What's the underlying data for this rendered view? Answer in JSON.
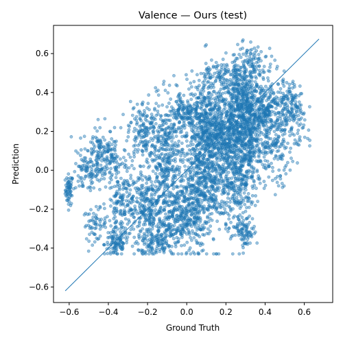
{
  "chart_data": {
    "type": "scatter",
    "title": "Valence — Ours (test)",
    "xlabel": "Ground Truth",
    "ylabel": "Prediction",
    "xlim": [
      -0.68,
      0.745
    ],
    "ylim": [
      -0.68,
      0.745
    ],
    "xticks": [
      -0.6,
      -0.4,
      -0.2,
      0.0,
      0.2,
      0.4,
      0.6
    ],
    "yticks": [
      -0.6,
      -0.4,
      -0.2,
      0.0,
      0.2,
      0.4,
      0.6
    ],
    "xtick_labels": [
      "−0.6",
      "−0.4",
      "−0.2",
      "0.0",
      "0.2",
      "0.4",
      "0.6"
    ],
    "ytick_labels": [
      "−0.6",
      "−0.4",
      "−0.2",
      "0.0",
      "0.2",
      "0.4",
      "0.6"
    ],
    "grid": false,
    "legend": "none",
    "marker_color": "#1f77b4",
    "identity_line": {
      "from": [
        -0.62,
        -0.62
      ],
      "to": [
        0.675,
        0.675
      ],
      "color": "#1f77b4"
    },
    "point_clusters": [
      {
        "cx": -0.6,
        "cy": -0.1,
        "sx": 0.01,
        "sy": 0.04,
        "n": 60
      },
      {
        "cx": -0.52,
        "cy": -0.02,
        "sx": 0.03,
        "sy": 0.05,
        "n": 60
      },
      {
        "cx": -0.45,
        "cy": 0.08,
        "sx": 0.04,
        "sy": 0.08,
        "n": 140
      },
      {
        "cx": -0.47,
        "cy": -0.28,
        "sx": 0.03,
        "sy": 0.04,
        "n": 60
      },
      {
        "cx": -0.36,
        "cy": -0.38,
        "sx": 0.03,
        "sy": 0.04,
        "n": 90
      },
      {
        "cx": -0.33,
        "cy": -0.18,
        "sx": 0.04,
        "sy": 0.08,
        "n": 160
      },
      {
        "cx": -0.38,
        "cy": 0.05,
        "sx": 0.04,
        "sy": 0.06,
        "n": 80
      },
      {
        "cx": -0.22,
        "cy": 0.2,
        "sx": 0.04,
        "sy": 0.08,
        "n": 180
      },
      {
        "cx": -0.2,
        "cy": -0.2,
        "sx": 0.05,
        "sy": 0.1,
        "n": 280
      },
      {
        "cx": -0.1,
        "cy": 0.05,
        "sx": 0.04,
        "sy": 0.15,
        "n": 350
      },
      {
        "cx": -0.05,
        "cy": -0.25,
        "sx": 0.05,
        "sy": 0.08,
        "n": 250
      },
      {
        "cx": -0.02,
        "cy": 0.3,
        "sx": 0.04,
        "sy": 0.05,
        "n": 120
      },
      {
        "cx": 0.05,
        "cy": -0.1,
        "sx": 0.05,
        "sy": 0.15,
        "n": 380
      },
      {
        "cx": 0.08,
        "cy": 0.28,
        "sx": 0.04,
        "sy": 0.1,
        "n": 250
      },
      {
        "cx": 0.12,
        "cy": 0.05,
        "sx": 0.05,
        "sy": 0.18,
        "n": 450
      },
      {
        "cx": 0.2,
        "cy": 0.2,
        "sx": 0.05,
        "sy": 0.12,
        "n": 420
      },
      {
        "cx": 0.28,
        "cy": 0.35,
        "sx": 0.04,
        "sy": 0.12,
        "n": 400
      },
      {
        "cx": 0.26,
        "cy": -0.05,
        "sx": 0.04,
        "sy": 0.15,
        "n": 300
      },
      {
        "cx": 0.32,
        "cy": 0.15,
        "sx": 0.04,
        "sy": 0.12,
        "n": 300
      },
      {
        "cx": 0.3,
        "cy": -0.32,
        "sx": 0.03,
        "sy": 0.03,
        "n": 60
      },
      {
        "cx": 0.4,
        "cy": 0.32,
        "sx": 0.05,
        "sy": 0.07,
        "n": 250
      },
      {
        "cx": 0.45,
        "cy": 0.12,
        "sx": 0.05,
        "sy": 0.1,
        "n": 180
      },
      {
        "cx": 0.52,
        "cy": 0.32,
        "sx": 0.03,
        "sy": 0.08,
        "n": 120
      },
      {
        "cx": 0.58,
        "cy": 0.25,
        "sx": 0.02,
        "sy": 0.06,
        "n": 40
      },
      {
        "cx": 0.35,
        "cy": 0.55,
        "sx": 0.05,
        "sy": 0.05,
        "n": 80
      },
      {
        "cx": 0.18,
        "cy": 0.5,
        "sx": 0.05,
        "sy": 0.04,
        "n": 80
      },
      {
        "cx": -0.15,
        "cy": -0.38,
        "sx": 0.05,
        "sy": 0.03,
        "n": 100
      }
    ]
  }
}
